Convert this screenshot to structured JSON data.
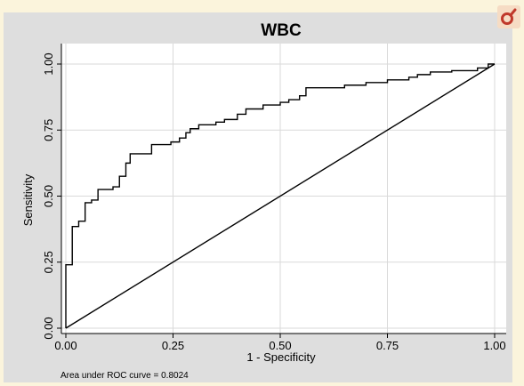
{
  "chart_data": {
    "type": "line",
    "title": "WBC",
    "xlabel": "1 - Specificity",
    "ylabel": "Sensitivity",
    "xlim": [
      0,
      1
    ],
    "ylim": [
      0,
      1
    ],
    "x_ticks": [
      "0.00",
      "0.25",
      "0.50",
      "0.75",
      "1.00"
    ],
    "y_ticks": [
      "0.00",
      "0.25",
      "0.50",
      "0.75",
      "1.00"
    ],
    "grid": true,
    "annotation": "Area under ROC curve = 0.8024",
    "roc_curve": [
      [
        0.0,
        0.0
      ],
      [
        0.0,
        0.24
      ],
      [
        0.015,
        0.24
      ],
      [
        0.015,
        0.385
      ],
      [
        0.03,
        0.385
      ],
      [
        0.03,
        0.405
      ],
      [
        0.045,
        0.405
      ],
      [
        0.045,
        0.475
      ],
      [
        0.06,
        0.475
      ],
      [
        0.06,
        0.485
      ],
      [
        0.075,
        0.485
      ],
      [
        0.075,
        0.525
      ],
      [
        0.11,
        0.525
      ],
      [
        0.11,
        0.535
      ],
      [
        0.125,
        0.535
      ],
      [
        0.125,
        0.575
      ],
      [
        0.14,
        0.575
      ],
      [
        0.14,
        0.625
      ],
      [
        0.15,
        0.625
      ],
      [
        0.15,
        0.66
      ],
      [
        0.2,
        0.66
      ],
      [
        0.2,
        0.695
      ],
      [
        0.245,
        0.695
      ],
      [
        0.245,
        0.705
      ],
      [
        0.265,
        0.705
      ],
      [
        0.265,
        0.72
      ],
      [
        0.28,
        0.72
      ],
      [
        0.28,
        0.74
      ],
      [
        0.29,
        0.74
      ],
      [
        0.29,
        0.755
      ],
      [
        0.31,
        0.755
      ],
      [
        0.31,
        0.77
      ],
      [
        0.35,
        0.77
      ],
      [
        0.35,
        0.78
      ],
      [
        0.37,
        0.78
      ],
      [
        0.37,
        0.79
      ],
      [
        0.4,
        0.79
      ],
      [
        0.4,
        0.81
      ],
      [
        0.42,
        0.81
      ],
      [
        0.42,
        0.83
      ],
      [
        0.46,
        0.83
      ],
      [
        0.46,
        0.845
      ],
      [
        0.5,
        0.845
      ],
      [
        0.5,
        0.855
      ],
      [
        0.52,
        0.855
      ],
      [
        0.52,
        0.865
      ],
      [
        0.545,
        0.865
      ],
      [
        0.545,
        0.88
      ],
      [
        0.56,
        0.88
      ],
      [
        0.56,
        0.91
      ],
      [
        0.65,
        0.91
      ],
      [
        0.65,
        0.92
      ],
      [
        0.7,
        0.92
      ],
      [
        0.7,
        0.93
      ],
      [
        0.75,
        0.93
      ],
      [
        0.75,
        0.94
      ],
      [
        0.8,
        0.94
      ],
      [
        0.8,
        0.95
      ],
      [
        0.82,
        0.95
      ],
      [
        0.82,
        0.96
      ],
      [
        0.85,
        0.96
      ],
      [
        0.85,
        0.97
      ],
      [
        0.9,
        0.97
      ],
      [
        0.9,
        0.975
      ],
      [
        0.96,
        0.975
      ],
      [
        0.96,
        0.985
      ],
      [
        0.985,
        0.985
      ],
      [
        0.985,
        1.0
      ],
      [
        1.0,
        1.0
      ]
    ],
    "reference_line": [
      [
        0,
        0
      ],
      [
        1,
        1
      ]
    ]
  },
  "colors": {
    "background": "#fbf4dc",
    "frame": "#dedede",
    "plot": "#ffffff",
    "grid": "#dadada",
    "line": "#000000",
    "badge": "#f6dcc4",
    "badge_icon": "#c0392b"
  },
  "icons": {
    "corner": "magnet-icon"
  }
}
